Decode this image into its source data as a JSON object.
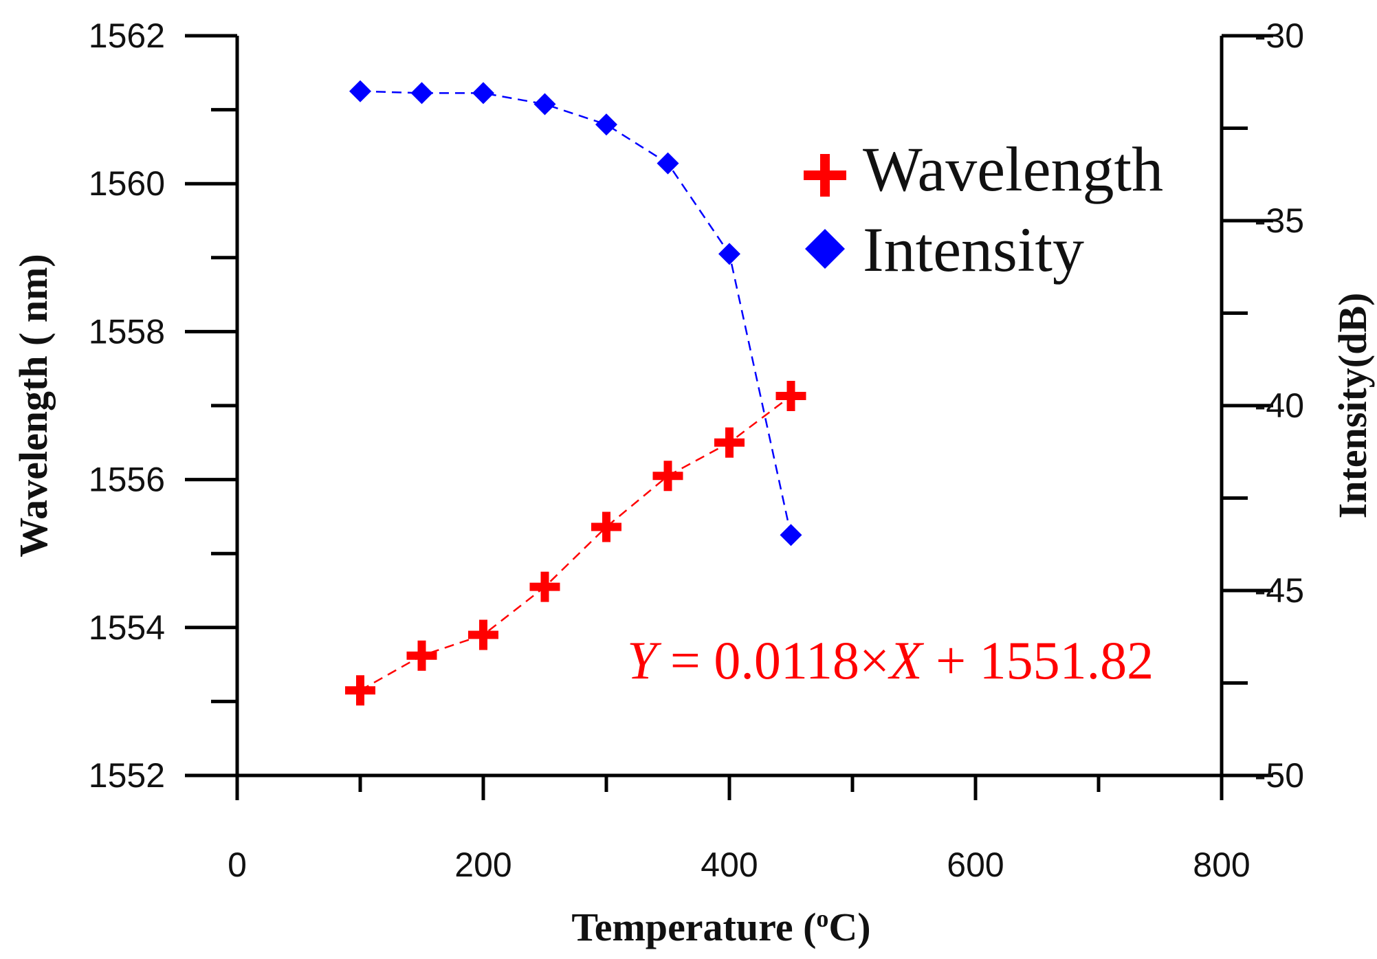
{
  "chart_data": {
    "type": "scatter",
    "title": "",
    "xlabel": "Temperature (",
    "xlabel_sup": "o",
    "xlabel_end": "C)",
    "ylabel": "Wavelength ( nm)",
    "y2label": "Intensity(dB)",
    "xlim": [
      0,
      800
    ],
    "ylim": [
      1552,
      1562
    ],
    "y2lim": [
      -50,
      -30
    ],
    "x_ticks": [
      0,
      200,
      400,
      600,
      800
    ],
    "x_tick_labels": [
      "0",
      "200",
      "400",
      "600",
      "800"
    ],
    "y_ticks": [
      1552,
      1554,
      1556,
      1558,
      1560,
      1562
    ],
    "y_tick_labels": [
      "1552",
      "1554",
      "1556",
      "1558",
      "1560",
      "1562"
    ],
    "y2_ticks": [
      -50,
      -45,
      -40,
      -35,
      -30
    ],
    "y2_tick_labels": [
      "-50",
      "-45",
      "-40",
      "-35",
      "-30"
    ],
    "grid": false,
    "legend_position": "top-right",
    "series": [
      {
        "name": "Wavelength",
        "axis": "left",
        "marker": "plus",
        "color": "#ff0000",
        "line": "dashed",
        "x": [
          100,
          150,
          200,
          250,
          300,
          350,
          400,
          450
        ],
        "y": [
          1553.15,
          1553.62,
          1553.9,
          1554.55,
          1555.36,
          1556.05,
          1556.5,
          1557.13
        ]
      },
      {
        "name": "Intensity",
        "axis": "right",
        "marker": "diamond",
        "color": "#0000ff",
        "line": "dashed",
        "x": [
          100,
          150,
          200,
          250,
          300,
          350,
          400,
          450
        ],
        "y": [
          -31.5,
          -31.55,
          -31.55,
          -31.85,
          -32.4,
          -33.45,
          -35.9,
          -43.5
        ]
      }
    ],
    "annotations": [
      {
        "type": "equation",
        "color": "#ff0000",
        "y_var": "Y",
        "rest": " = 0.0118×",
        "x_var": "X",
        "tail": " + 1551.82"
      }
    ]
  }
}
